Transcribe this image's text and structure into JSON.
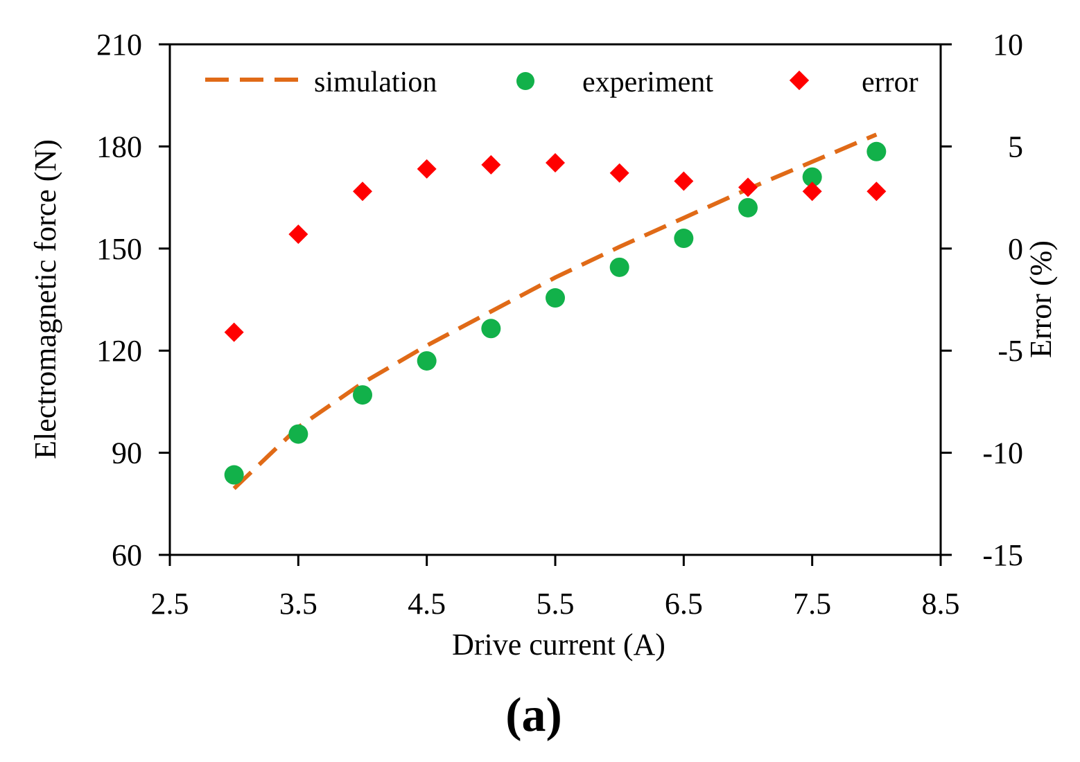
{
  "chart_data": {
    "type": "scatter",
    "title": "",
    "panel_label": "(a)",
    "xlabel": "Drive current (A)",
    "ylabel": "Electromagnetic  force (N)",
    "y2label": "Error (%)",
    "xlim": [
      2.5,
      8.5
    ],
    "ylim": [
      60,
      210
    ],
    "y2lim": [
      -15,
      10
    ],
    "x_ticks": [
      "2.5",
      "3.5",
      "4.5",
      "5.5",
      "6.5",
      "7.5",
      "8.5"
    ],
    "y_ticks": [
      "60",
      "90",
      "120",
      "150",
      "180",
      "210"
    ],
    "y2_ticks": [
      "-15",
      "-10",
      "-5",
      "0",
      "5",
      "10"
    ],
    "grid": false,
    "legend_position": "top",
    "series": [
      {
        "name": "simulation",
        "kind": "dashed-line",
        "axis": "left",
        "color": "#e06a17",
        "x": [
          3.0,
          3.5,
          4.0,
          4.5,
          5.0,
          5.5,
          6.0,
          6.5,
          7.0,
          7.5,
          8.0
        ],
        "values": [
          79.5,
          97.5,
          110.5,
          121.5,
          131.5,
          141.5,
          150.5,
          159.0,
          167.5,
          175.5,
          183.5
        ]
      },
      {
        "name": "experiment",
        "kind": "circle",
        "axis": "left",
        "color": "#12b14a",
        "x": [
          3.0,
          3.5,
          4.0,
          4.5,
          5.0,
          5.5,
          6.0,
          6.5,
          7.0,
          7.5,
          8.0
        ],
        "values": [
          83.5,
          95.5,
          107.0,
          117.0,
          126.5,
          135.5,
          144.5,
          153.0,
          162.0,
          171.0,
          178.5
        ]
      },
      {
        "name": "error",
        "kind": "diamond",
        "axis": "right",
        "color": "#ff0000",
        "x": [
          3.0,
          3.5,
          4.0,
          4.5,
          5.0,
          5.5,
          6.0,
          6.5,
          7.0,
          7.5,
          8.0
        ],
        "values": [
          -4.1,
          0.7,
          2.8,
          3.9,
          4.1,
          4.2,
          3.7,
          3.3,
          3.0,
          2.8,
          2.8
        ]
      }
    ]
  }
}
